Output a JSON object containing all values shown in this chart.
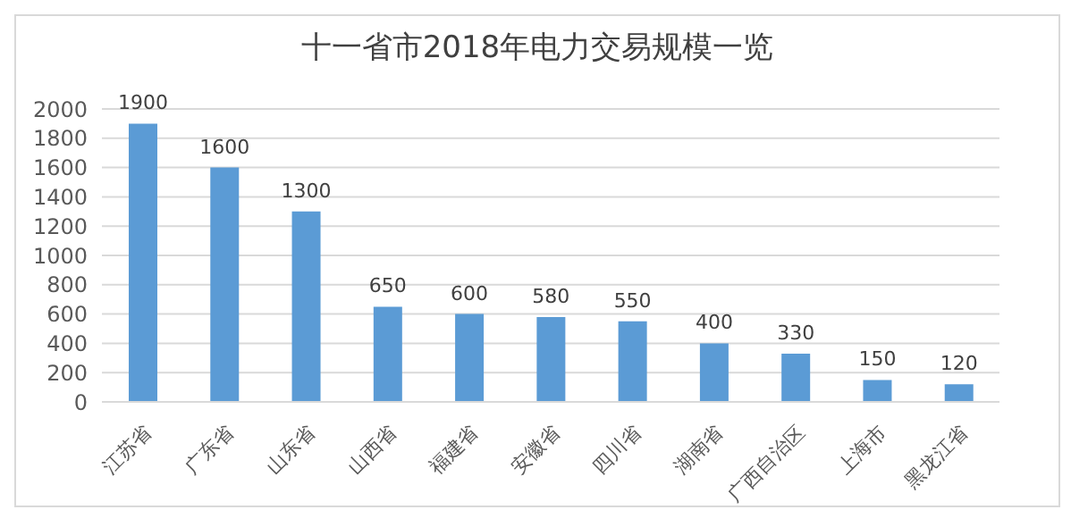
{
  "chart_data": {
    "type": "bar",
    "title": "十一省市2018年电力交易规模一览",
    "categories": [
      "江苏省",
      "广东省",
      "山东省",
      "山西省",
      "福建省",
      "安徽省",
      "四川省",
      "湖南省",
      "广西自治区",
      "上海市",
      "黑龙江省"
    ],
    "values": [
      1900,
      1600,
      1300,
      650,
      600,
      580,
      550,
      400,
      330,
      150,
      120
    ],
    "color": "#5b9bd5",
    "ylim": [
      0,
      2000
    ],
    "yticks": [
      0,
      200,
      400,
      600,
      800,
      1000,
      1200,
      1400,
      1600,
      1800,
      2000
    ],
    "grid": "y",
    "data_labels": true
  }
}
